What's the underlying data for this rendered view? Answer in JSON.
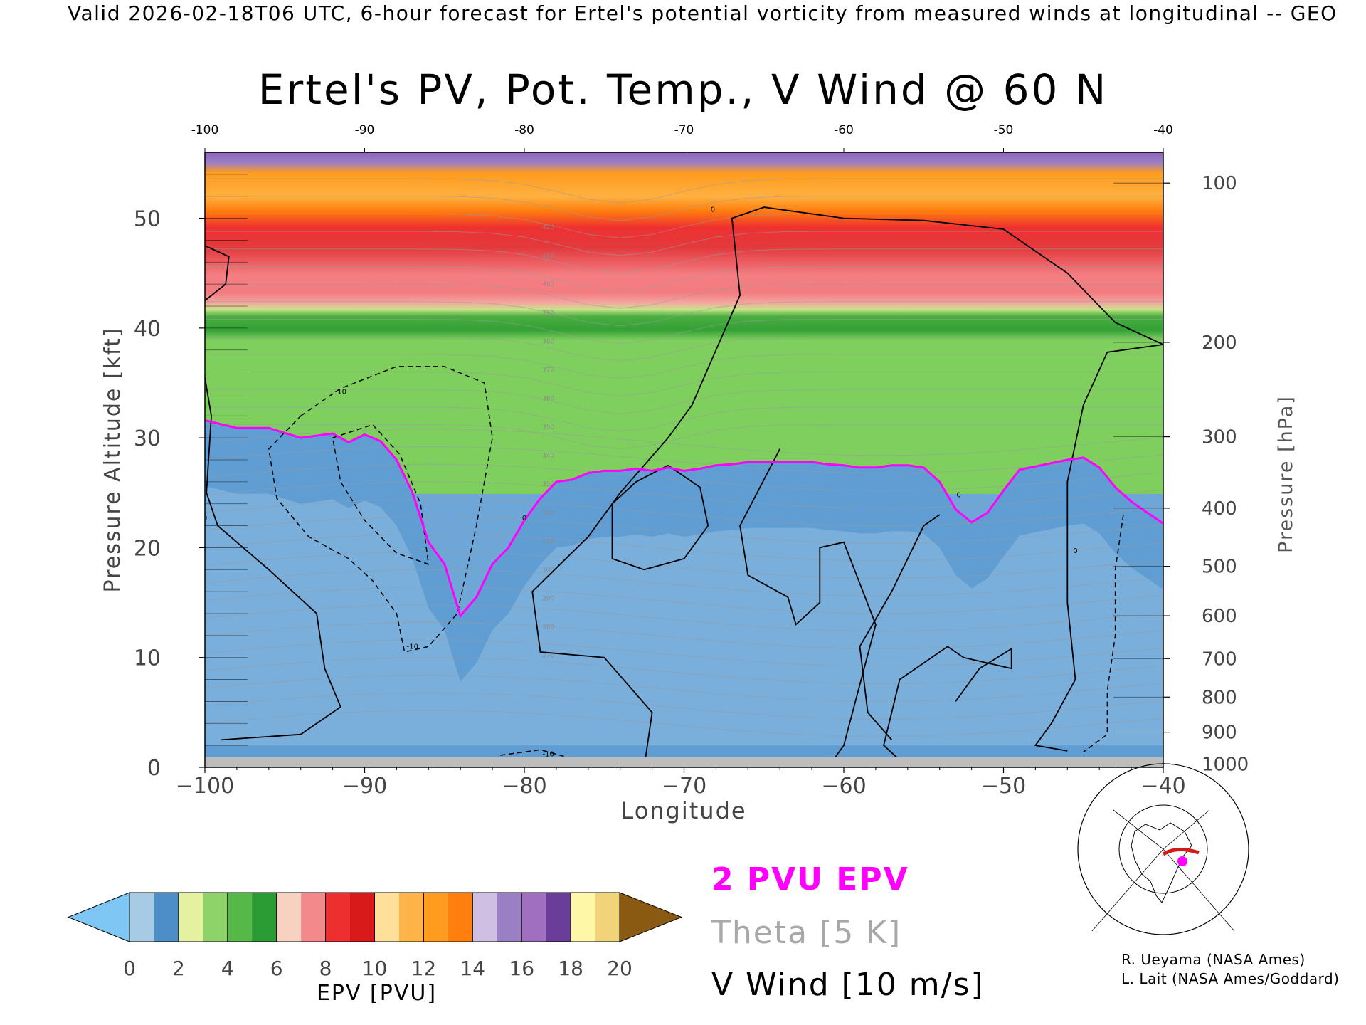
{
  "header": {
    "banner": "Valid 2026-02-18T06 UTC, 6-hour forecast for Ertel's potential vorticity from measured winds at longitudinal -- GEO"
  },
  "chart_data": {
    "type": "heatmap",
    "title": "Ertel's PV, Pot. Temp., V Wind @ 60 N",
    "xlabel": "Longitude",
    "ylabel": "Pressure Altitude [kft]",
    "y2label": "Pressure [hPa]",
    "xlim": [
      -100,
      -40
    ],
    "ylim": [
      0,
      56
    ],
    "x_ticks": [
      "−100",
      "−90",
      "−80",
      "−70",
      "−60",
      "−50",
      "−40"
    ],
    "x_tick_values": [
      -100,
      -90,
      -80,
      -70,
      -60,
      -50,
      -40
    ],
    "x_top_ticks": [
      "-100",
      "-90",
      "-80",
      "-70",
      "-60",
      "-50",
      "-40"
    ],
    "y_ticks": [
      "0",
      "10",
      "20",
      "30",
      "40",
      "50"
    ],
    "y_tick_values": [
      0,
      10,
      20,
      30,
      40,
      50
    ],
    "pressure_ticks": [
      {
        "label": "100",
        "kft": 53.2
      },
      {
        "label": "200",
        "kft": 38.7
      },
      {
        "label": "300",
        "kft": 30.1
      },
      {
        "label": "400",
        "kft": 23.6
      },
      {
        "label": "500",
        "kft": 18.3
      },
      {
        "label": "600",
        "kft": 13.8
      },
      {
        "label": "700",
        "kft": 9.9
      },
      {
        "label": "800",
        "kft": 6.4
      },
      {
        "label": "900",
        "kft": 3.2
      },
      {
        "label": "1000",
        "kft": 0.3
      }
    ],
    "pv_2pvu_contour": {
      "lon": [
        -100,
        -98,
        -96,
        -94,
        -92,
        -91,
        -90,
        -89,
        -88,
        -87,
        -86,
        -85,
        -84,
        -83,
        -82,
        -81,
        -80,
        -79,
        -78,
        -77,
        -76,
        -75,
        -74,
        -73,
        -72,
        -71,
        -70,
        -69,
        -68,
        -67,
        -66,
        -65,
        -64,
        -63,
        -62,
        -61,
        -60,
        -59,
        -58,
        -57,
        -56,
        -55,
        -54,
        -53,
        -52,
        -51,
        -50,
        -49,
        -48,
        -47,
        -46,
        -45,
        -44,
        -43,
        -42,
        -41,
        -40
      ],
      "kft": [
        31.6,
        30.9,
        30.9,
        30.0,
        30.4,
        29.6,
        30.3,
        29.7,
        28.0,
        25.0,
        20.5,
        18.5,
        13.8,
        15.5,
        18.5,
        20.0,
        22.5,
        24.5,
        26.0,
        26.2,
        26.8,
        27.0,
        27.0,
        27.2,
        27.0,
        27.3,
        27.0,
        27.2,
        27.5,
        27.6,
        27.8,
        27.8,
        27.8,
        27.8,
        27.8,
        27.6,
        27.5,
        27.3,
        27.3,
        27.5,
        27.5,
        27.3,
        26.0,
        23.5,
        22.3,
        23.2,
        25.2,
        27.1,
        27.4,
        27.7,
        28.0,
        28.2,
        27.3,
        25.5,
        24.2,
        23.2,
        22.2
      ]
    },
    "theta_labels": [
      "420",
      "410",
      "400",
      "390",
      "380",
      "370",
      "360",
      "350",
      "340",
      "330",
      "320",
      "310",
      "300",
      "290",
      "280",
      "270"
    ],
    "v_wind_contour_labels": [
      "0",
      "-10",
      "10"
    ],
    "colorbar": {
      "label": "EPV [PVU]",
      "min": 0,
      "max": 20,
      "ticks": [
        "0",
        "2",
        "4",
        "6",
        "8",
        "10",
        "12",
        "14",
        "16",
        "18",
        "20"
      ],
      "tick_values": [
        0,
        2,
        4,
        6,
        8,
        10,
        12,
        14,
        16,
        18,
        20
      ],
      "colors": [
        "#a7cbe5",
        "#4d8ec9",
        "#e4f1a0",
        "#8ed36a",
        "#56b847",
        "#2b9c33",
        "#f7d2c0",
        "#f3898a",
        "#ee2f2f",
        "#d91a1a",
        "#ffe09a",
        "#ffb44a",
        "#ff9b1f",
        "#ff7f0e",
        "#cfbfe3",
        "#9a7fc5",
        "#a06fc0",
        "#6a3d9a",
        "#fff7a8",
        "#f1d47a"
      ],
      "under_color": "#7ec6f4",
      "over_color": "#8a5a12"
    },
    "legend": [
      {
        "label": "2 PVU EPV",
        "color": "#ff00ff"
      },
      {
        "label": "Theta [5 K]",
        "color": "#a8a8a8"
      },
      {
        "label": "V Wind [10 m/s]",
        "color": "#000000"
      }
    ]
  },
  "credits": [
    "R. Ueyama (NASA Ames)",
    "L. Lait (NASA Ames/Goddard)"
  ]
}
